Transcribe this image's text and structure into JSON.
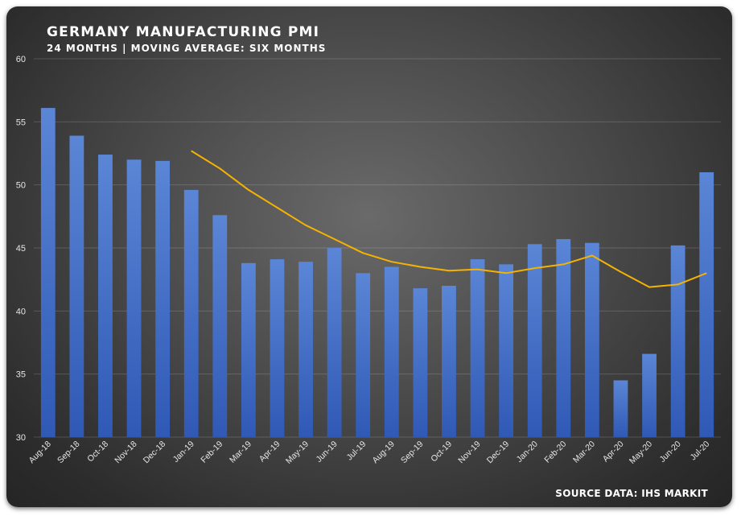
{
  "chart_data": {
    "type": "bar",
    "title": "GERMANY MANUFACTURING PMI",
    "subtitle": "24 MONTHS | MOVING AVERAGE: SIX MONTHS",
    "source": "SOURCE DATA: IHS MARKIT",
    "ylim": [
      30,
      60
    ],
    "yticks": [
      30,
      35,
      40,
      45,
      50,
      55,
      60
    ],
    "grid": true,
    "categories": [
      "Aug-18",
      "Sep-18",
      "Oct-18",
      "Nov-18",
      "Dec-18",
      "Jan-19",
      "Feb-19",
      "Mar-19",
      "Apr-19",
      "May-19",
      "Jun-19",
      "Jul-19",
      "Aug-19",
      "Sep-19",
      "Oct-19",
      "Nov-19",
      "Dec-19",
      "Jan-20",
      "Feb-20",
      "Mar-20",
      "Apr-20",
      "May-20",
      "Jun-20",
      "Jul-20"
    ],
    "series": [
      {
        "type": "bar",
        "color": "#4472c4",
        "values": [
          56.1,
          53.9,
          52.4,
          52.0,
          51.9,
          49.6,
          47.6,
          43.8,
          44.1,
          43.9,
          45.0,
          43.0,
          43.5,
          41.8,
          42.0,
          44.1,
          43.7,
          45.3,
          45.7,
          45.4,
          34.5,
          36.6,
          45.2,
          51.0
        ]
      },
      {
        "type": "line",
        "color": "#f5b301",
        "values": [
          null,
          null,
          null,
          null,
          null,
          52.7,
          51.3,
          49.6,
          48.2,
          46.8,
          45.7,
          44.6,
          43.9,
          43.5,
          43.2,
          43.3,
          43.0,
          43.4,
          43.7,
          44.4,
          43.1,
          41.9,
          42.1,
          43.0
        ]
      }
    ]
  }
}
